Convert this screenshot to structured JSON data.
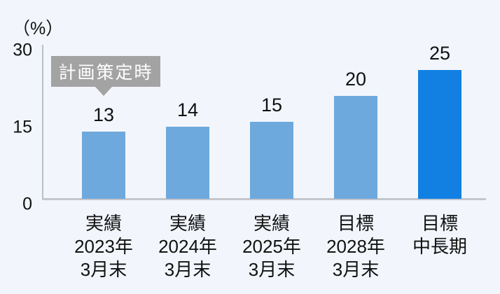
{
  "chart_data": {
    "type": "bar",
    "title": "",
    "unit_label": "（%）",
    "annotation": "計画策定時",
    "categories": [
      [
        "実績",
        "2023年",
        "3月末"
      ],
      [
        "実績",
        "2024年",
        "3月末"
      ],
      [
        "実績",
        "2025年",
        "3月末"
      ],
      [
        "目標",
        "2028年",
        "3月末"
      ],
      [
        "目標",
        "中長期"
      ]
    ],
    "values": [
      13,
      14,
      15,
      20,
      25
    ],
    "value_labels": [
      "13",
      "14",
      "15",
      "20",
      "25"
    ],
    "ylim": [
      0,
      30
    ],
    "yticks": [
      30,
      15,
      0
    ],
    "ytick_labels": [
      "30",
      "15",
      "0"
    ],
    "grid": false,
    "legend": "none",
    "bar_colors": [
      "#6ea9dd",
      "#6ea9dd",
      "#6ea9dd",
      "#6ea9dd",
      "#1280e2"
    ]
  },
  "colors": {
    "background": "#f2f6fc",
    "bar_light": "#6ea9dd",
    "bar_dark": "#1280e2",
    "badge_background": "#a3a3a3",
    "badge_text": "#ffffff",
    "axis_line": "#bcc1c8",
    "text": "#111111"
  }
}
